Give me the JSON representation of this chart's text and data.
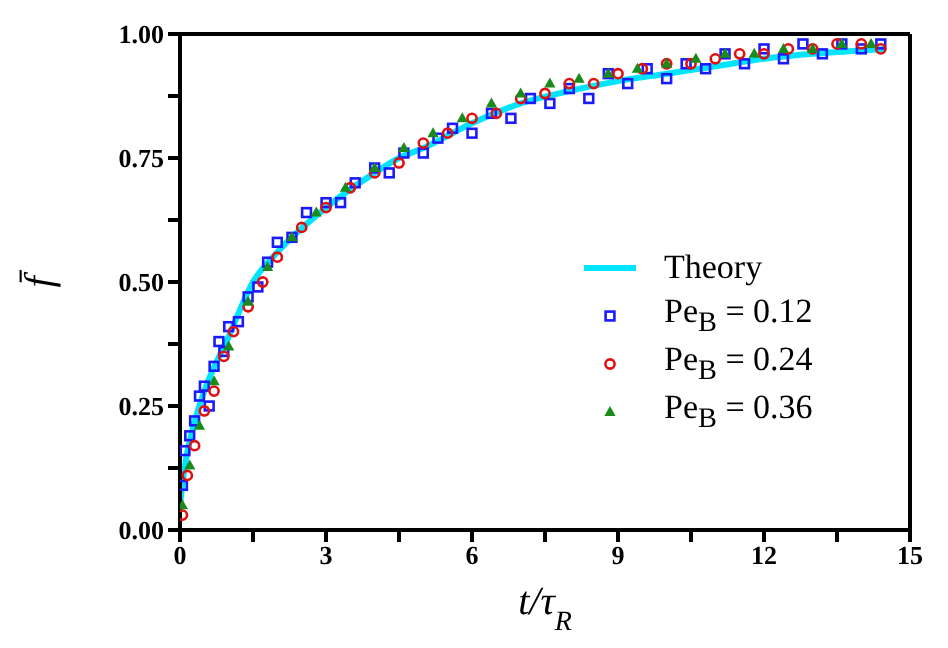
{
  "chart_data": {
    "type": "scatter",
    "xlabel": "t/τ$_{R}$",
    "ylabel": "f̄",
    "xlim": [
      0,
      15
    ],
    "ylim": [
      0,
      1
    ],
    "xticks": [
      0,
      {
        "value": 1.5,
        "label": null
      },
      3,
      {
        "value": 4.5,
        "label": null
      },
      6,
      {
        "value": 7.5,
        "label": null
      },
      9,
      {
        "value": 10.5,
        "label": null
      },
      12,
      {
        "value": 13.5,
        "label": null
      },
      15
    ],
    "yticks": [
      {
        "value": 0,
        "label": "0.00"
      },
      {
        "value": 0.125,
        "label": null
      },
      {
        "value": 0.25,
        "label": "0.25"
      },
      {
        "value": 0.375,
        "label": null
      },
      {
        "value": 0.5,
        "label": "0.50"
      },
      {
        "value": 0.625,
        "label": null
      },
      {
        "value": 0.75,
        "label": "0.75"
      },
      {
        "value": 0.875,
        "label": null
      },
      {
        "value": 1,
        "label": "1.00"
      }
    ],
    "legend": "bottom right",
    "grid": false,
    "series": [
      {
        "name": "Theory",
        "type": "line",
        "color": "#00e5ff",
        "marker": "none",
        "line_style": "solid",
        "x": [
          0,
          0.1,
          0.25,
          0.5,
          1,
          1.5,
          2,
          3,
          4,
          4.5,
          5,
          6,
          7,
          8,
          9,
          10,
          11,
          12,
          13,
          14.5
        ],
        "values": [
          0.05,
          0.13,
          0.2,
          0.28,
          0.39,
          0.5,
          0.56,
          0.65,
          0.72,
          0.75,
          0.77,
          0.82,
          0.86,
          0.885,
          0.905,
          0.92,
          0.935,
          0.95,
          0.96,
          0.97
        ]
      },
      {
        "name": "Pe$_{B}$ = 0.12",
        "type": "scatter",
        "color": "#1a1aff",
        "marker": "square",
        "x": [
          0.05,
          0.1,
          0.2,
          0.3,
          0.4,
          0.5,
          0.6,
          0.7,
          0.8,
          0.9,
          1.0,
          1.2,
          1.4,
          1.6,
          1.8,
          2.0,
          2.3,
          2.6,
          3.0,
          3.3,
          3.6,
          4.0,
          4.3,
          4.6,
          5.0,
          5.3,
          5.6,
          6.0,
          6.4,
          6.8,
          7.2,
          7.6,
          8.0,
          8.4,
          8.8,
          9.2,
          9.6,
          10.0,
          10.4,
          10.8,
          11.2,
          11.6,
          12.0,
          12.4,
          12.8,
          13.2,
          13.6,
          14.0,
          14.4
        ],
        "values": [
          0.09,
          0.16,
          0.19,
          0.22,
          0.27,
          0.29,
          0.25,
          0.33,
          0.38,
          0.36,
          0.41,
          0.42,
          0.47,
          0.49,
          0.54,
          0.58,
          0.59,
          0.64,
          0.66,
          0.66,
          0.7,
          0.73,
          0.72,
          0.76,
          0.76,
          0.79,
          0.81,
          0.8,
          0.84,
          0.83,
          0.87,
          0.86,
          0.89,
          0.87,
          0.92,
          0.9,
          0.93,
          0.91,
          0.94,
          0.93,
          0.96,
          0.94,
          0.97,
          0.95,
          0.98,
          0.96,
          0.98,
          0.97,
          0.98
        ]
      },
      {
        "name": "Pe$_{B}$ = 0.24",
        "type": "scatter",
        "color": "#e01010",
        "marker": "circle",
        "x": [
          0.05,
          0.15,
          0.3,
          0.5,
          0.7,
          0.9,
          1.1,
          1.4,
          1.7,
          2.0,
          2.5,
          3.0,
          3.5,
          4.0,
          4.5,
          5.0,
          5.5,
          6.0,
          6.5,
          7.0,
          7.5,
          8.0,
          8.5,
          9.0,
          9.5,
          10.0,
          10.5,
          11,
          11.5,
          12,
          12.5,
          13,
          13.5,
          14,
          14.4
        ],
        "values": [
          0.03,
          0.11,
          0.17,
          0.24,
          0.28,
          0.35,
          0.4,
          0.45,
          0.5,
          0.55,
          0.61,
          0.65,
          0.69,
          0.72,
          0.74,
          0.78,
          0.8,
          0.83,
          0.84,
          0.87,
          0.88,
          0.9,
          0.9,
          0.92,
          0.93,
          0.94,
          0.94,
          0.95,
          0.96,
          0.96,
          0.97,
          0.97,
          0.98,
          0.98,
          0.97
        ]
      },
      {
        "name": "Pe$_{B}$ = 0.36",
        "type": "scatter",
        "color": "#1a8a1a",
        "marker": "triangle",
        "x": [
          0.05,
          0.2,
          0.4,
          0.7,
          1.0,
          1.4,
          1.8,
          2.3,
          2.8,
          3.4,
          4.0,
          4.6,
          5.2,
          5.8,
          6.4,
          7.0,
          7.6,
          8.2,
          8.8,
          9.4,
          10,
          10.6,
          11.2,
          11.8,
          12.4,
          13,
          13.6,
          14.2
        ],
        "values": [
          0.05,
          0.13,
          0.21,
          0.3,
          0.37,
          0.46,
          0.53,
          0.59,
          0.64,
          0.69,
          0.73,
          0.77,
          0.8,
          0.83,
          0.86,
          0.88,
          0.9,
          0.91,
          0.92,
          0.93,
          0.94,
          0.95,
          0.96,
          0.96,
          0.97,
          0.97,
          0.98,
          0.98
        ]
      }
    ]
  }
}
